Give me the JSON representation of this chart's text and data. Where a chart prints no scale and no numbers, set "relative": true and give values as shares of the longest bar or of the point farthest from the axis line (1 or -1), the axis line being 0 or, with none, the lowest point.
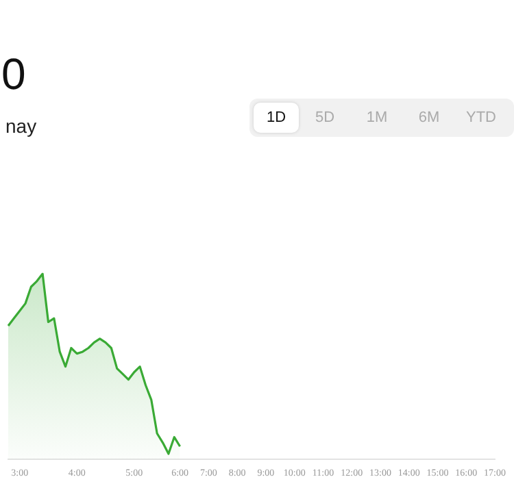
{
  "chart_data": {
    "type": "area",
    "title": "0",
    "subtitle": "nay",
    "annotations": [
      "1D",
      "5D",
      "1M",
      "6M",
      "YTD"
    ],
    "categories": [
      null,
      null,
      "3:00",
      null,
      null,
      null,
      null,
      null,
      null,
      null,
      null,
      null,
      "4:00",
      null,
      null,
      null,
      null,
      null,
      null,
      null,
      null,
      null,
      "5:00",
      null,
      null,
      null,
      null,
      null,
      null,
      null,
      "6:00",
      null,
      null,
      null,
      null,
      "7:00",
      null,
      null,
      null,
      null,
      "8:00",
      null,
      null,
      null,
      null,
      "9:00",
      null,
      null,
      null,
      null,
      "10:00",
      null,
      null,
      null,
      null,
      "11:00",
      null,
      null,
      null,
      null,
      "12:00",
      null,
      null,
      null,
      null,
      "13:00",
      null,
      null,
      null,
      null,
      "14:00",
      null,
      null,
      null,
      null,
      "15:00",
      null,
      null,
      null,
      null,
      "16:00",
      null,
      null,
      null,
      null,
      "17:00"
    ],
    "series": [
      {
        "color": "#3aaa35",
        "values": [
          0.72,
          0.76,
          0.8,
          0.84,
          0.93,
          0.96,
          1,
          0.74,
          0.76,
          0.58,
          0.5,
          0.6,
          0.57,
          0.58,
          0.6,
          0.63,
          0.65,
          0.63,
          0.6,
          0.49,
          0.46,
          0.43,
          0.47,
          0.5,
          0.4,
          0.32,
          0.14,
          0.09,
          0.03,
          0.12,
          0.07,
          null,
          null,
          null,
          null,
          null,
          null,
          null,
          null,
          null,
          null,
          null,
          null,
          null,
          null,
          null,
          null,
          null,
          null,
          null,
          null,
          null,
          null,
          null,
          null,
          null,
          null,
          null,
          null,
          null,
          null,
          null,
          null,
          null,
          null,
          null,
          null,
          null,
          null,
          null,
          null,
          null,
          null,
          null,
          null,
          null,
          null,
          null,
          null,
          null,
          null,
          null,
          null,
          null,
          null,
          null
        ]
      }
    ],
    "relative": true,
    "legend": false,
    "marker": "none"
  }
}
